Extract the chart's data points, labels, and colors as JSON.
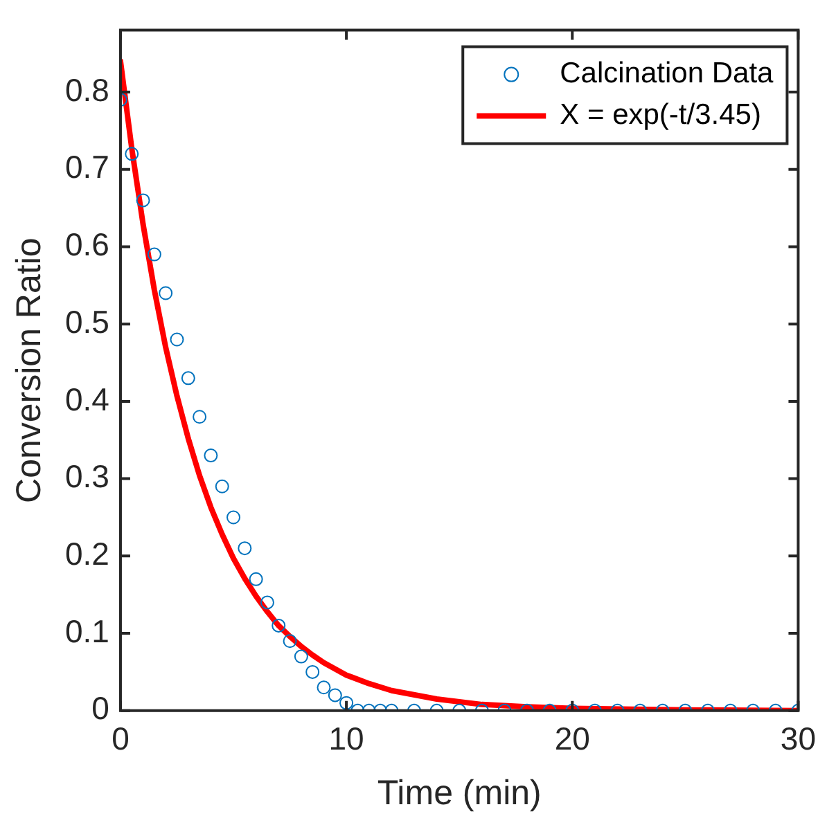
{
  "chart_data": {
    "type": "scatter",
    "xlabel": "Time (min)",
    "ylabel": "Conversion Ratio",
    "xlim": [
      0,
      30
    ],
    "xticks": [
      0,
      10,
      20,
      30
    ],
    "ylim": [
      0,
      0.88
    ],
    "yticks": [
      0,
      0.1,
      0.2,
      0.3,
      0.4,
      0.5,
      0.6,
      0.7,
      0.8
    ],
    "legend": "top right",
    "series": [
      {
        "name": "Calcination Data",
        "type": "scatter",
        "marker": "circle",
        "color": "#0072bd",
        "x": [
          0,
          0.5,
          1,
          1.5,
          2,
          2.5,
          3,
          3.5,
          4,
          4.5,
          5,
          5.5,
          6,
          6.5,
          7,
          7.5,
          8,
          8.5,
          9,
          9.5,
          10,
          10.5,
          11,
          11.5,
          12,
          13,
          14,
          15,
          16,
          17,
          18,
          19,
          20,
          21,
          22,
          23,
          24,
          25,
          26,
          27,
          28,
          29,
          30
        ],
        "values": [
          0.79,
          0.72,
          0.66,
          0.59,
          0.54,
          0.48,
          0.43,
          0.38,
          0.33,
          0.29,
          0.25,
          0.21,
          0.17,
          0.14,
          0.11,
          0.09,
          0.07,
          0.05,
          0.03,
          0.02,
          0.01,
          0,
          0,
          0,
          0,
          0,
          0,
          0,
          0,
          0,
          0,
          0,
          0,
          0,
          0,
          0,
          0,
          0,
          0,
          0,
          0,
          0,
          0
        ]
      },
      {
        "name": "X = exp(-t/3.45)",
        "type": "line",
        "marker": "none",
        "line_style": "solid",
        "color": "#ff0000",
        "x": [
          0,
          0.5,
          1,
          1.5,
          2,
          2.5,
          3,
          3.5,
          4,
          4.5,
          5,
          5.5,
          6,
          6.5,
          7,
          7.5,
          8,
          8.5,
          9,
          9.5,
          10,
          11,
          12,
          14,
          16,
          18,
          20,
          25,
          30
        ],
        "values": [
          0.84,
          0.727,
          0.629,
          0.544,
          0.47,
          0.407,
          0.352,
          0.304,
          0.263,
          0.228,
          0.197,
          0.171,
          0.148,
          0.128,
          0.11,
          0.096,
          0.083,
          0.072,
          0.062,
          0.054,
          0.046,
          0.035,
          0.026,
          0.015,
          0.008,
          0.005,
          0.003,
          0.001,
          0
        ]
      }
    ]
  }
}
